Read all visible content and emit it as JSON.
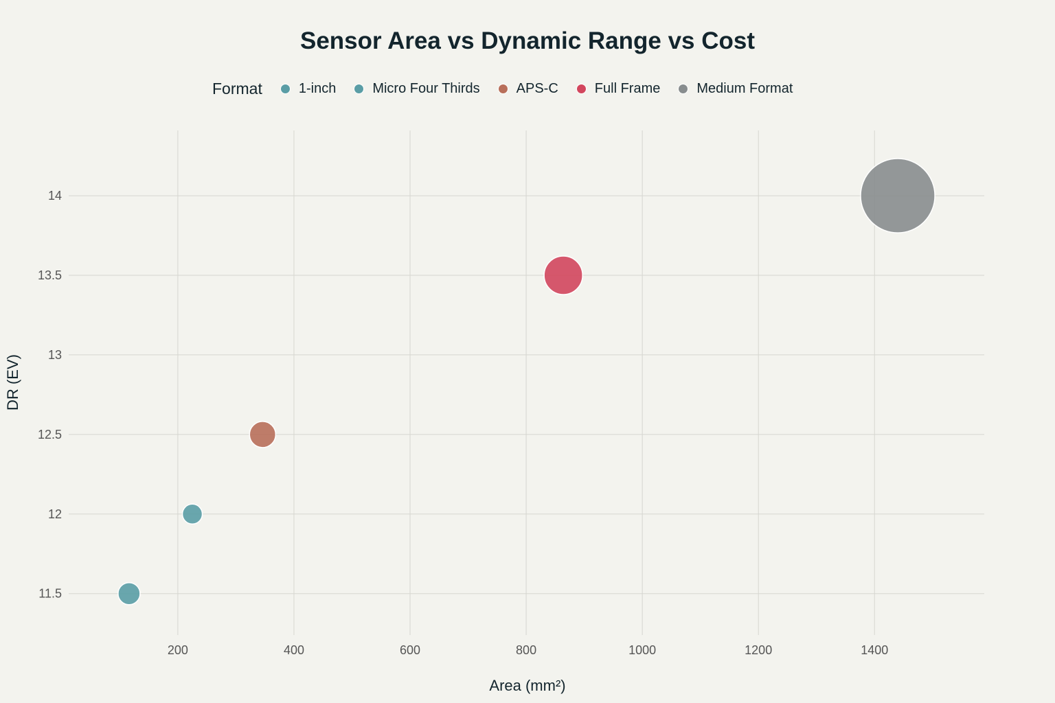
{
  "chart_data": {
    "type": "scatter",
    "title": "Sensor Area vs Dynamic Range vs Cost",
    "xlabel": "Area (mm²)",
    "ylabel": "DR (EV)",
    "xlim": [
      12,
      1589
    ],
    "ylim": [
      11.24,
      14.41
    ],
    "xticks": [
      200,
      400,
      600,
      800,
      1000,
      1200,
      1400
    ],
    "yticks": [
      11.5,
      12,
      12.5,
      13,
      13.5,
      14
    ],
    "grid": true,
    "legend": {
      "title": "Format",
      "placement": "top"
    },
    "series": [
      {
        "name": "1-inch",
        "color": "#5a9da5",
        "x": [
          116
        ],
        "y": [
          11.5
        ],
        "size": [
          1.22
        ]
      },
      {
        "name": "Micro Four Thirds",
        "color": "#5a9da5",
        "x": [
          225
        ],
        "y": [
          12
        ],
        "size": [
          1.0
        ]
      },
      {
        "name": "APS-C",
        "color": "#b86f5a",
        "x": [
          346
        ],
        "y": [
          12.5
        ],
        "size": [
          1.72
        ]
      },
      {
        "name": "Full Frame",
        "color": "#d2465d",
        "x": [
          864
        ],
        "y": [
          13.5
        ],
        "size": [
          3.73
        ]
      },
      {
        "name": "Medium Format",
        "color": "#888d8e",
        "x": [
          1440
        ],
        "y": [
          14
        ],
        "size": [
          13.9
        ]
      }
    ]
  }
}
